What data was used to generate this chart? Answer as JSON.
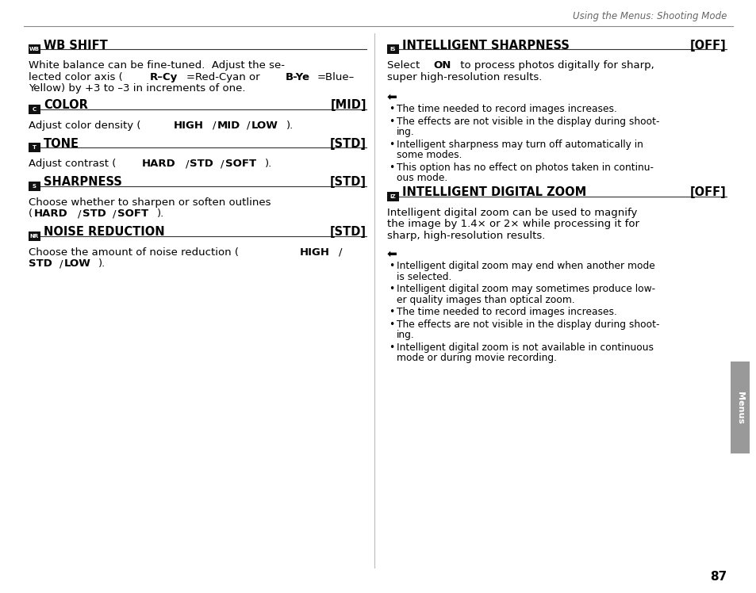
{
  "bg_color": "#ffffff",
  "header_text": "Using the Menus: Shooting Mode",
  "header_color": "#666666",
  "page_number": "87",
  "tab_label": "Menus",
  "tab_color": "#999999"
}
